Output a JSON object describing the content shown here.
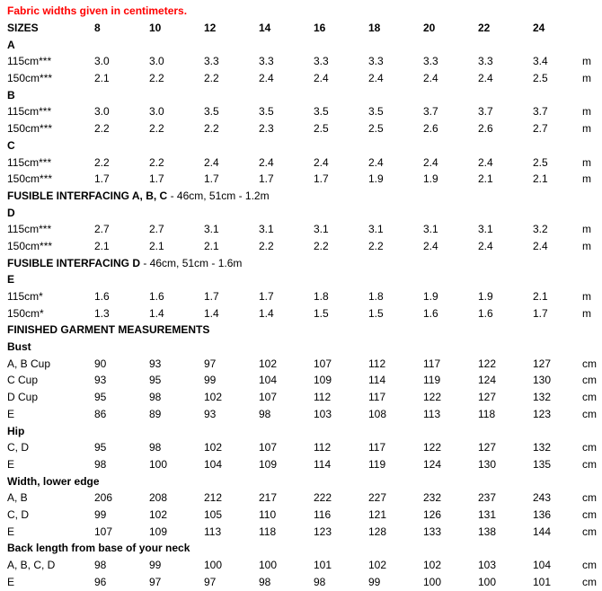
{
  "note": {
    "text": "Fabric widths given in centimeters.",
    "color": "#ff0000"
  },
  "colors": {
    "text": "#000000",
    "background": "#ffffff"
  },
  "table": {
    "header": {
      "label": "SIZES",
      "sizes": [
        "8",
        "10",
        "12",
        "14",
        "16",
        "18",
        "20",
        "22",
        "24"
      ]
    },
    "rows": [
      {
        "type": "section",
        "label": "A"
      },
      {
        "type": "data",
        "label": "115cm***",
        "values": [
          "3.0",
          "3.0",
          "3.3",
          "3.3",
          "3.3",
          "3.3",
          "3.3",
          "3.3",
          "3.4"
        ],
        "unit": "m"
      },
      {
        "type": "data",
        "label": "150cm***",
        "values": [
          "2.1",
          "2.2",
          "2.2",
          "2.4",
          "2.4",
          "2.4",
          "2.4",
          "2.4",
          "2.5"
        ],
        "unit": "m"
      },
      {
        "type": "section",
        "label": "B"
      },
      {
        "type": "data",
        "label": "115cm***",
        "values": [
          "3.0",
          "3.0",
          "3.5",
          "3.5",
          "3.5",
          "3.5",
          "3.7",
          "3.7",
          "3.7"
        ],
        "unit": "m"
      },
      {
        "type": "data",
        "label": "150cm***",
        "values": [
          "2.2",
          "2.2",
          "2.2",
          "2.3",
          "2.5",
          "2.5",
          "2.6",
          "2.6",
          "2.7"
        ],
        "unit": "m"
      },
      {
        "type": "section",
        "label": "C"
      },
      {
        "type": "data",
        "label": "115cm***",
        "values": [
          "2.2",
          "2.2",
          "2.4",
          "2.4",
          "2.4",
          "2.4",
          "2.4",
          "2.4",
          "2.5"
        ],
        "unit": "m"
      },
      {
        "type": "data",
        "label": "150cm***",
        "values": [
          "1.7",
          "1.7",
          "1.7",
          "1.7",
          "1.7",
          "1.9",
          "1.9",
          "2.1",
          "2.1"
        ],
        "unit": "m"
      },
      {
        "type": "note",
        "label": "FUSIBLE INTERFACING A, B, C",
        "detail": " - 46cm, 51cm - 1.2m"
      },
      {
        "type": "section",
        "label": "D"
      },
      {
        "type": "data",
        "label": "115cm***",
        "values": [
          "2.7",
          "2.7",
          "3.1",
          "3.1",
          "3.1",
          "3.1",
          "3.1",
          "3.1",
          "3.2"
        ],
        "unit": "m"
      },
      {
        "type": "data",
        "label": "150cm***",
        "values": [
          "2.1",
          "2.1",
          "2.1",
          "2.2",
          "2.2",
          "2.2",
          "2.4",
          "2.4",
          "2.4"
        ],
        "unit": "m"
      },
      {
        "type": "note",
        "label": "FUSIBLE INTERFACING D",
        "detail": " - 46cm, 51cm - 1.6m"
      },
      {
        "type": "section",
        "label": "E"
      },
      {
        "type": "data",
        "label": "115cm*",
        "values": [
          "1.6",
          "1.6",
          "1.7",
          "1.7",
          "1.8",
          "1.8",
          "1.9",
          "1.9",
          "2.1"
        ],
        "unit": "m"
      },
      {
        "type": "data",
        "label": "150cm*",
        "values": [
          "1.3",
          "1.4",
          "1.4",
          "1.4",
          "1.5",
          "1.5",
          "1.6",
          "1.6",
          "1.7"
        ],
        "unit": "m"
      },
      {
        "type": "section",
        "label": "FINISHED GARMENT MEASUREMENTS"
      },
      {
        "type": "section",
        "label": "Bust"
      },
      {
        "type": "data",
        "label": "A, B Cup",
        "values": [
          "90",
          "93",
          "97",
          "102",
          "107",
          "112",
          "117",
          "122",
          "127"
        ],
        "unit": "cm"
      },
      {
        "type": "data",
        "label": "C Cup",
        "values": [
          "93",
          "95",
          "99",
          "104",
          "109",
          "114",
          "119",
          "124",
          "130"
        ],
        "unit": "cm"
      },
      {
        "type": "data",
        "label": "D Cup",
        "values": [
          "95",
          "98",
          "102",
          "107",
          "112",
          "117",
          "122",
          "127",
          "132"
        ],
        "unit": "cm"
      },
      {
        "type": "data",
        "label": "E",
        "values": [
          "86",
          "89",
          "93",
          "98",
          "103",
          "108",
          "113",
          "118",
          "123"
        ],
        "unit": "cm"
      },
      {
        "type": "section",
        "label": "Hip"
      },
      {
        "type": "data",
        "label": "C, D",
        "values": [
          "95",
          "98",
          "102",
          "107",
          "112",
          "117",
          "122",
          "127",
          "132"
        ],
        "unit": "cm"
      },
      {
        "type": "data",
        "label": "E",
        "values": [
          "98",
          "100",
          "104",
          "109",
          "114",
          "119",
          "124",
          "130",
          "135"
        ],
        "unit": "cm"
      },
      {
        "type": "section",
        "label": "Width, lower edge"
      },
      {
        "type": "data",
        "label": "A, B",
        "values": [
          "206",
          "208",
          "212",
          "217",
          "222",
          "227",
          "232",
          "237",
          "243"
        ],
        "unit": "cm"
      },
      {
        "type": "data",
        "label": "C, D",
        "values": [
          "99",
          "102",
          "105",
          "110",
          "116",
          "121",
          "126",
          "131",
          "136"
        ],
        "unit": "cm"
      },
      {
        "type": "data",
        "label": "E",
        "values": [
          "107",
          "109",
          "113",
          "118",
          "123",
          "128",
          "133",
          "138",
          "144"
        ],
        "unit": "cm"
      },
      {
        "type": "section",
        "label": "Back length from base of your neck"
      },
      {
        "type": "data",
        "label": "A, B, C, D",
        "values": [
          "98",
          "99",
          "100",
          "100",
          "101",
          "102",
          "102",
          "103",
          "104"
        ],
        "unit": "cm"
      },
      {
        "type": "data",
        "label": "E",
        "values": [
          "96",
          "97",
          "97",
          "98",
          "98",
          "99",
          "100",
          "100",
          "101"
        ],
        "unit": "cm"
      }
    ]
  }
}
